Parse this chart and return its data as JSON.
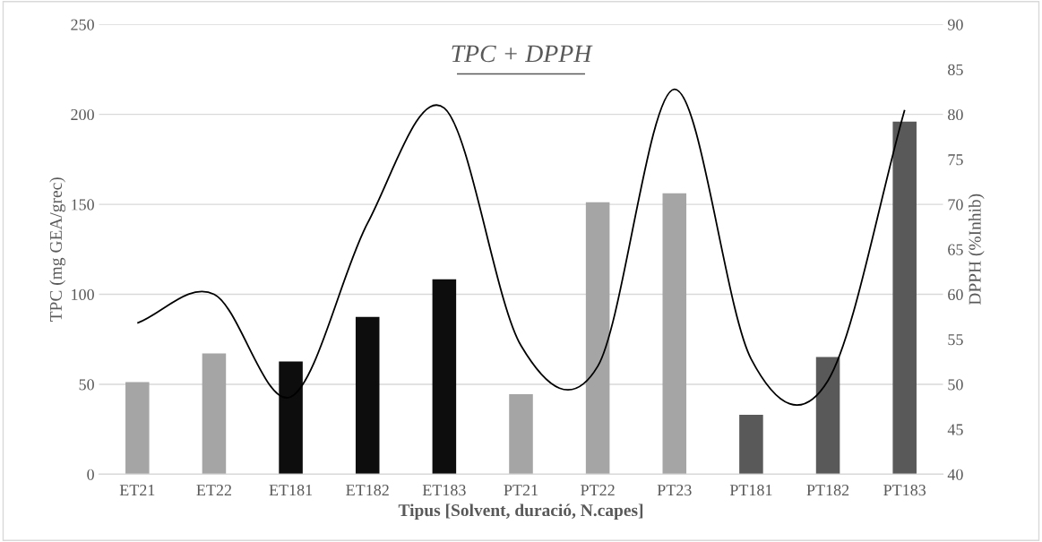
{
  "chart_data": {
    "type": "bar",
    "title": "TPC + DPPH",
    "xlabel": "Tipus [Solvent, duració, N.capes]",
    "ylabel": "TPC (mg GEA/grec)",
    "y2label": "DPPH (%Inhib)",
    "categories": [
      "ET21",
      "ET22",
      "ET181",
      "ET182",
      "ET183",
      "PT21",
      "PT22",
      "PT23",
      "PT181",
      "PT182",
      "PT183"
    ],
    "series": [
      {
        "colors": [
          "#a5a5a5",
          "#a5a5a5",
          "#0d0d0d",
          "#0d0d0d",
          "#0d0d0d",
          "#a5a5a5",
          "#a5a5a5",
          "#a5a5a5",
          "#595959",
          "#595959",
          "#595959"
        ],
        "values": [
          51.2,
          67.2,
          62.7,
          87.4,
          108.4,
          44.5,
          151.2,
          156.2,
          33.1,
          65.2,
          196
        ]
      },
      {
        "type": "line",
        "axis": "y2",
        "color": "#000000",
        "values": [
          56.8,
          60.0,
          48.6,
          67.9,
          80.7,
          54.3,
          52.0,
          82.8,
          52.8,
          50.4,
          80.5
        ]
      }
    ],
    "ylim": [
      0,
      250
    ],
    "yticks": [
      0,
      50,
      100,
      150,
      200,
      250
    ],
    "y2lim": [
      40,
      90
    ],
    "y2ticks": [
      40,
      45,
      50,
      55,
      60,
      65,
      70,
      75,
      80,
      85,
      90
    ],
    "grid": "y"
  }
}
